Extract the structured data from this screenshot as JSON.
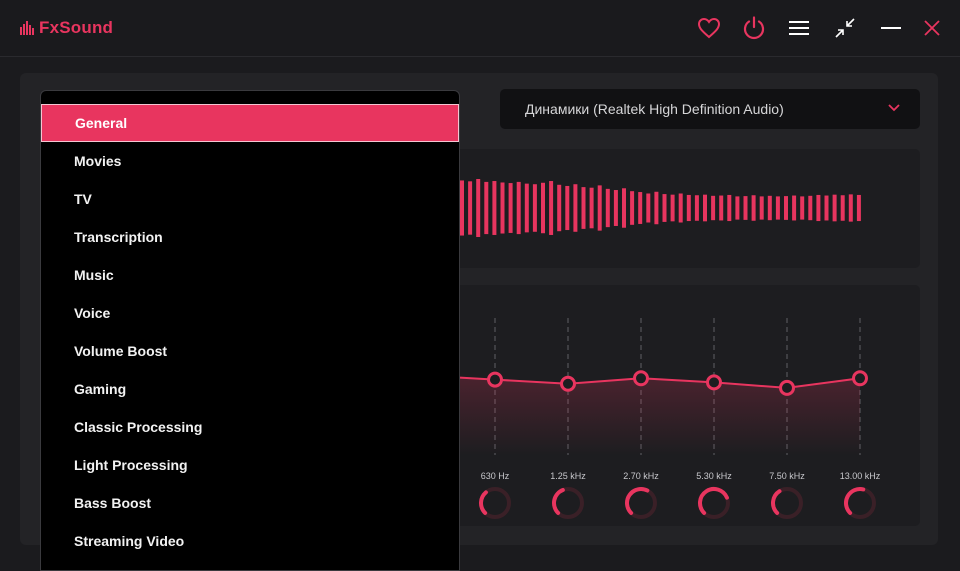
{
  "app": {
    "name": "FxSound",
    "brand_color": "#e8355f"
  },
  "titlebar": {
    "icons": [
      "heart-icon",
      "power-icon",
      "menu-icon",
      "minimize-to-tray-icon",
      "minimize-icon",
      "close-icon"
    ]
  },
  "device": {
    "selected": "Динамики (Realtek High Definition Audio)"
  },
  "presets": {
    "selected_index": 0,
    "items": [
      "General",
      "Movies",
      "TV",
      "Transcription",
      "Music",
      "Voice",
      "Volume Boost",
      "Gaming",
      "Classic Processing",
      "Light Processing",
      "Bass Boost",
      "Streaming Video"
    ]
  },
  "eq": {
    "bands": [
      {
        "label": "630 Hz",
        "level": 0.55
      },
      {
        "label": "1.25 kHz",
        "level": 0.52
      },
      {
        "label": "2.70 kHz",
        "level": 0.56
      },
      {
        "label": "5.30 kHz",
        "level": 0.53
      },
      {
        "label": "7.50 kHz",
        "level": 0.49
      },
      {
        "label": "13.00 kHz",
        "level": 0.56
      }
    ],
    "knob_levels": [
      0.35,
      0.42,
      0.6,
      0.75,
      0.38,
      0.55
    ]
  },
  "visualizer": {
    "levels": [
      0.95,
      0.92,
      1.0,
      0.9,
      0.93,
      0.88,
      0.86,
      0.9,
      0.84,
      0.82,
      0.87,
      0.93,
      0.8,
      0.76,
      0.82,
      0.72,
      0.7,
      0.78,
      0.66,
      0.62,
      0.68,
      0.58,
      0.55,
      0.5,
      0.56,
      0.48,
      0.46,
      0.5,
      0.45,
      0.44,
      0.46,
      0.42,
      0.43,
      0.45,
      0.4,
      0.41,
      0.44,
      0.4,
      0.42,
      0.4,
      0.41,
      0.43,
      0.4,
      0.42,
      0.45,
      0.43,
      0.46,
      0.44,
      0.47,
      0.45
    ]
  }
}
